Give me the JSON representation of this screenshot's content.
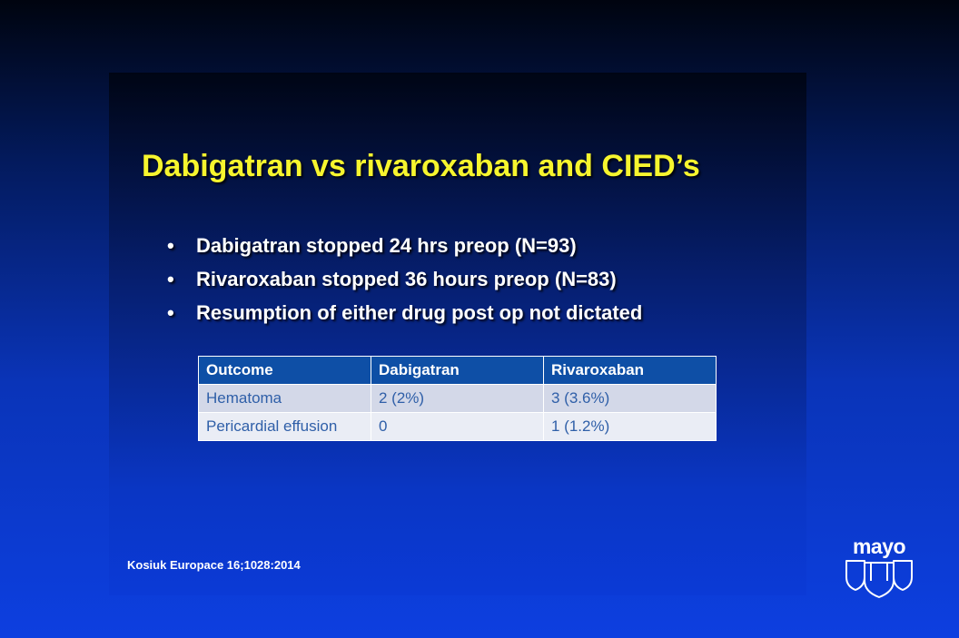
{
  "slide": {
    "title": "Dabigatran vs rivaroxaban and CIED’s",
    "bullet_symbol": "•",
    "bullets": [
      "Dabigatran stopped 24 hrs preop (N=93)",
      "Rivaroxaban stopped 36 hours preop (N=83)",
      "Resumption of either drug post op not dictated"
    ],
    "table": {
      "headers": [
        "Outcome",
        "Dabigatran",
        "Rivaroxaban"
      ],
      "rows": [
        [
          "Hematoma",
          "2 (2%)",
          "3 (3.6%)"
        ],
        [
          "Pericardial effusion",
          "0",
          "1 (1.2%)"
        ]
      ]
    },
    "citation": "Kosiuk Europace 16;1028:2014"
  },
  "logo": {
    "text": "mayo",
    "icon": "mayo-shields-icon"
  },
  "colors": {
    "title": "#f7f52e",
    "table_header": "#0e4fa6",
    "table_text": "#2f5fa8",
    "table_row_dark": "#d3d8e8",
    "table_row_light": "#eaedf5"
  }
}
